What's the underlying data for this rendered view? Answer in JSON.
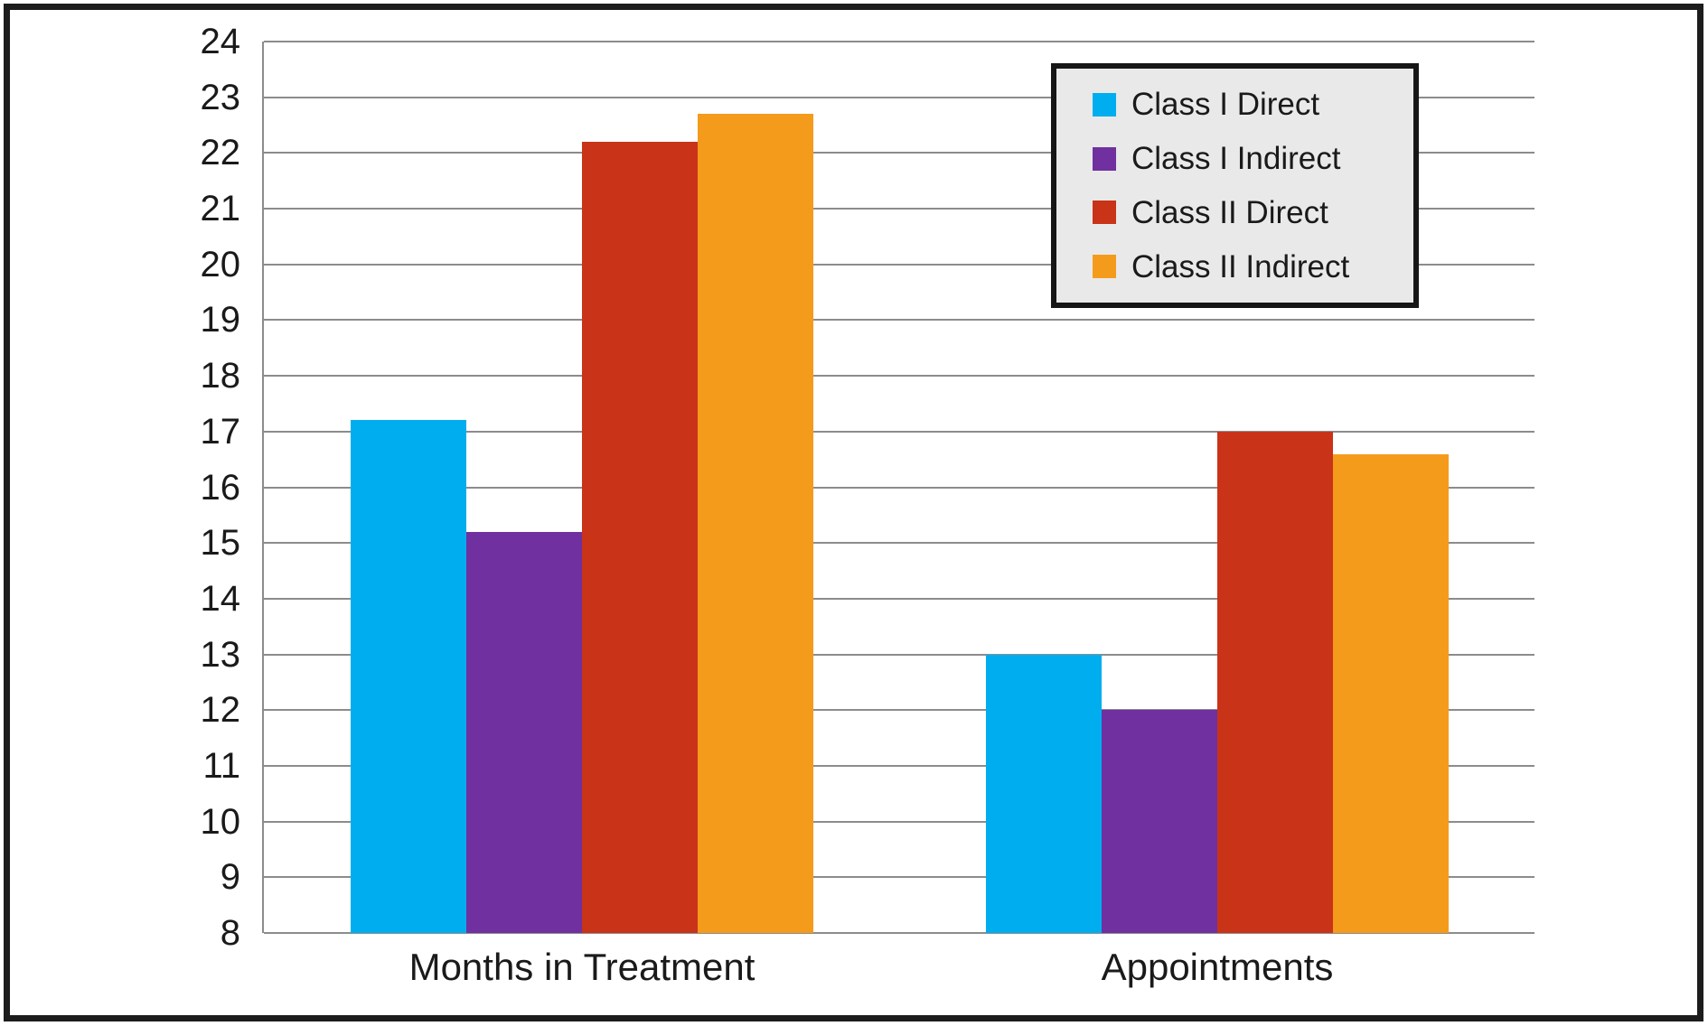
{
  "chart_data": {
    "type": "bar",
    "categories": [
      "Months in Treatment",
      "Appointments"
    ],
    "series": [
      {
        "name": "Class I Direct",
        "color": "#00AEEF",
        "values": [
          17.2,
          13.0
        ]
      },
      {
        "name": "Class I Indirect",
        "color": "#7030A0",
        "values": [
          15.2,
          12.0
        ]
      },
      {
        "name": "Class II Direct",
        "color": "#C93317",
        "values": [
          22.2,
          17.0
        ]
      },
      {
        "name": "Class II Indirect",
        "color": "#F59B1B",
        "values": [
          22.7,
          16.6
        ]
      }
    ],
    "ylim": [
      8,
      24
    ],
    "yticks": [
      8,
      9,
      10,
      11,
      12,
      13,
      14,
      15,
      16,
      17,
      18,
      19,
      20,
      21,
      22,
      23,
      24
    ],
    "grid": true,
    "legend_position": "top-right"
  },
  "colors": {
    "gridline": "#8C8C8C",
    "legend_background": "#E9E9E9",
    "frame_border": "#1C1C1C",
    "text": "#1A1A1A",
    "plot_background": "#FFFFFF"
  }
}
